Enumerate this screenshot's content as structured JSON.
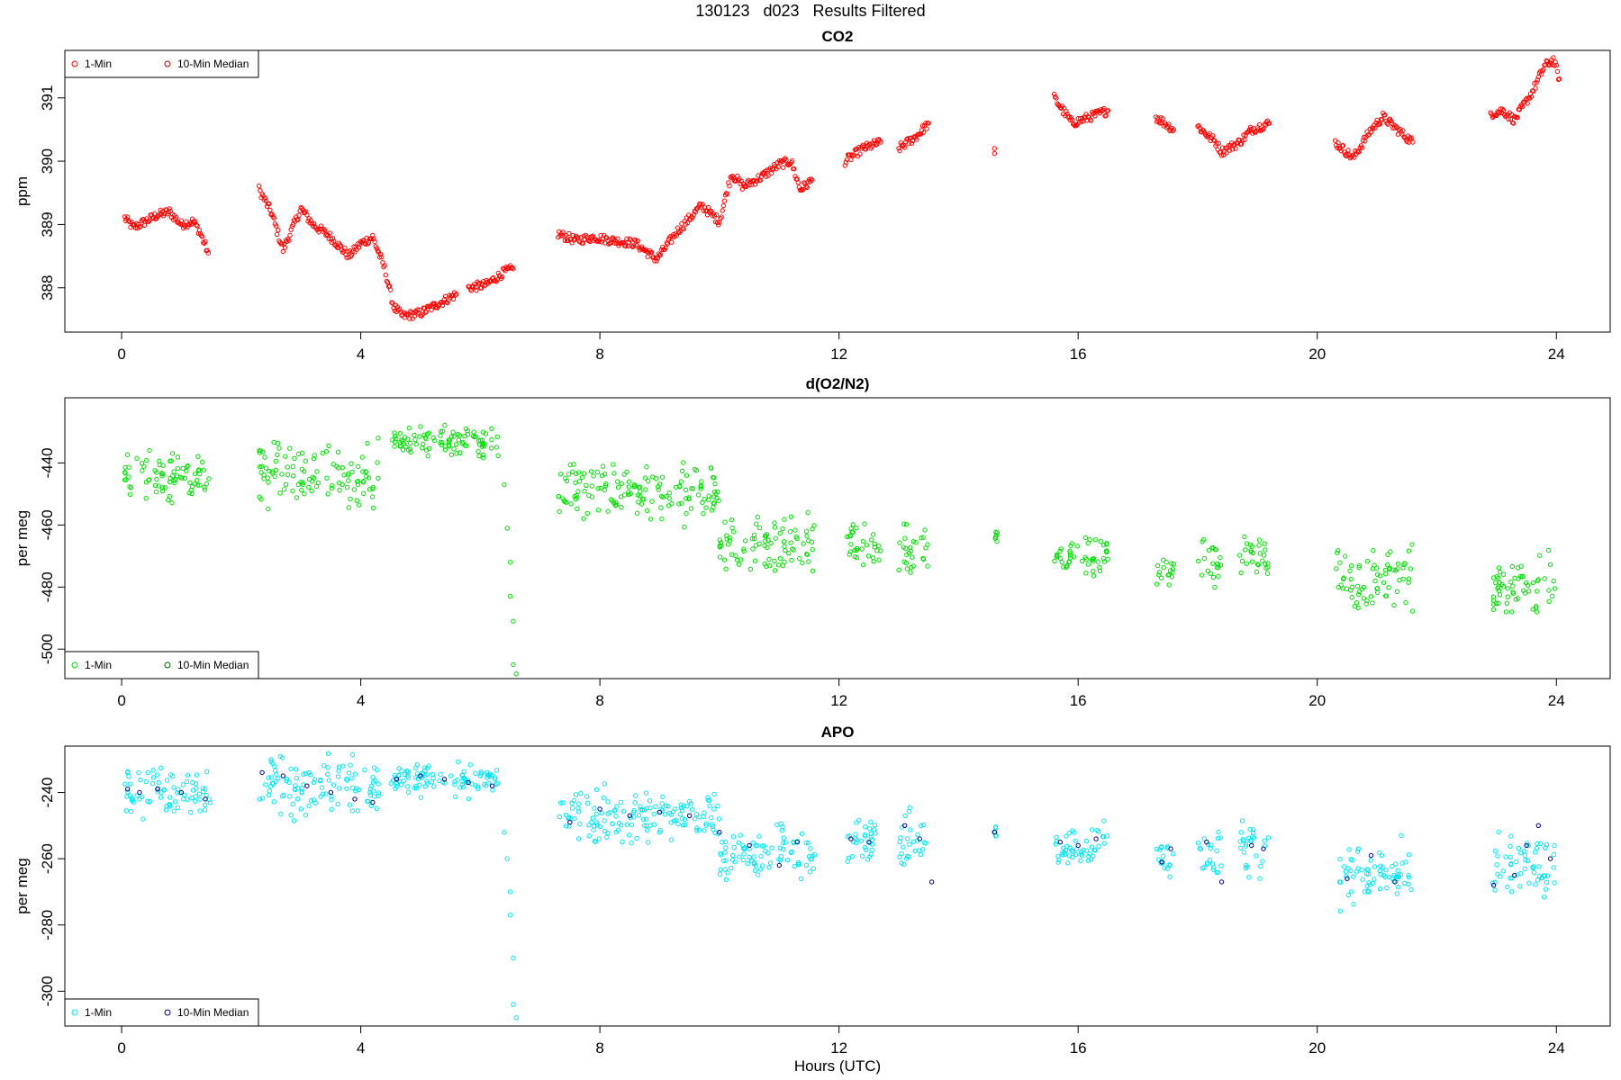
{
  "figure_title": "130123   d023   Results Filtered",
  "x_axis_label": "Hours (UTC)",
  "chart_data": [
    {
      "type": "scatter",
      "title": "CO2",
      "xlabel": "Hours (UTC)",
      "ylabel": "ppm",
      "xlim": [
        -0.95,
        24.9
      ],
      "ylim": [
        387.3,
        391.75
      ],
      "x_ticks": [
        0,
        4,
        8,
        12,
        16,
        20,
        24
      ],
      "y_ticks": [
        388,
        389,
        390,
        391
      ],
      "legend": {
        "position": "top-left",
        "entries": [
          "1-Min",
          "10-Min Median"
        ]
      },
      "colors": {
        "one_min": "#ff0000",
        "median": "#b00000"
      },
      "series": [
        {
          "name": "1-Min",
          "segments": [
            [
              [
                0.05,
                389.1
              ],
              [
                0.2,
                388.95
              ],
              [
                0.4,
                389.05
              ],
              [
                0.6,
                389.15
              ],
              [
                0.8,
                389.2
              ],
              [
                1.0,
                389.0
              ],
              [
                1.2,
                389.05
              ],
              [
                1.3,
                388.9
              ],
              [
                1.45,
                388.55
              ]
            ],
            [
              [
                2.3,
                389.55
              ],
              [
                2.5,
                389.2
              ],
              [
                2.7,
                388.6
              ],
              [
                3.0,
                389.25
              ],
              [
                3.2,
                389.0
              ],
              [
                3.5,
                388.8
              ],
              [
                3.8,
                388.5
              ],
              [
                4.0,
                388.7
              ],
              [
                4.2,
                388.8
              ],
              [
                4.4,
                388.3
              ],
              [
                4.55,
                387.7
              ],
              [
                4.7,
                387.55
              ],
              [
                5.0,
                387.6
              ],
              [
                5.3,
                387.75
              ],
              [
                5.6,
                387.9
              ]
            ],
            [
              [
                5.8,
                388.0
              ],
              [
                6.1,
                388.05
              ],
              [
                6.4,
                388.25
              ],
              [
                6.55,
                388.3
              ]
            ],
            [
              [
                7.3,
                388.85
              ],
              [
                7.6,
                388.75
              ],
              [
                7.9,
                388.8
              ],
              [
                8.2,
                388.75
              ],
              [
                8.6,
                388.7
              ],
              [
                8.95,
                388.45
              ],
              [
                9.3,
                388.9
              ],
              [
                9.7,
                389.3
              ],
              [
                10.0,
                389.05
              ],
              [
                10.2,
                389.8
              ],
              [
                10.4,
                389.6
              ],
              [
                10.7,
                389.75
              ],
              [
                11.0,
                389.95
              ],
              [
                11.2,
                390.0
              ],
              [
                11.35,
                389.55
              ],
              [
                11.55,
                389.7
              ]
            ],
            [
              [
                12.1,
                390.0
              ],
              [
                12.4,
                390.2
              ],
              [
                12.7,
                390.3
              ]
            ],
            [
              [
                13.0,
                390.2
              ],
              [
                13.3,
                390.4
              ],
              [
                13.5,
                390.6
              ]
            ],
            [
              [
                14.6,
                390.2
              ]
            ],
            [
              [
                15.6,
                391.0
              ],
              [
                15.9,
                390.6
              ],
              [
                16.2,
                390.7
              ],
              [
                16.5,
                390.8
              ]
            ],
            [
              [
                17.3,
                390.7
              ],
              [
                17.6,
                390.5
              ]
            ],
            [
              [
                18.0,
                390.55
              ],
              [
                18.3,
                390.3
              ],
              [
                18.4,
                390.15
              ],
              [
                18.7,
                390.3
              ],
              [
                18.9,
                390.5
              ],
              [
                19.2,
                390.6
              ]
            ],
            [
              [
                20.3,
                390.3
              ],
              [
                20.6,
                390.05
              ],
              [
                20.9,
                390.5
              ],
              [
                21.1,
                390.7
              ],
              [
                21.4,
                390.45
              ],
              [
                21.6,
                390.3
              ]
            ],
            [
              [
                22.9,
                390.75
              ],
              [
                23.1,
                390.8
              ],
              [
                23.3,
                390.65
              ],
              [
                23.6,
                391.1
              ],
              [
                23.8,
                391.5
              ],
              [
                23.95,
                391.6
              ],
              [
                24.05,
                391.3
              ]
            ]
          ]
        },
        {
          "name": "10-Min Median",
          "values": []
        }
      ]
    },
    {
      "type": "scatter",
      "title": "d(O2/N2)",
      "xlabel": "Hours (UTC)",
      "ylabel": "per meg",
      "xlim": [
        -0.95,
        24.9
      ],
      "ylim": [
        -509.5,
        -419
      ],
      "x_ticks": [
        0,
        4,
        8,
        12,
        16,
        20,
        24
      ],
      "y_ticks": [
        -500,
        -480,
        -460,
        -440
      ],
      "legend": {
        "position": "bottom-left",
        "entries": [
          "1-Min",
          "10-Min Median"
        ]
      },
      "colors": {
        "one_min": "#00dd00",
        "median": "#006600"
      },
      "series": [
        {
          "name": "1-Min",
          "clusters": [
            {
              "x": [
                0.05,
                1.5
              ],
              "y": [
                -455,
                -436
              ],
              "center": -444
            },
            {
              "x": [
                2.3,
                4.3
              ],
              "y": [
                -460,
                -432
              ],
              "center": -444
            },
            {
              "x": [
                4.5,
                6.3
              ],
              "y": [
                -440,
                -426
              ],
              "center": -433
            },
            {
              "x": [
                7.3,
                10.0
              ],
              "y": [
                -461,
                -437
              ],
              "center": -450
            },
            {
              "x": [
                10.0,
                11.6
              ],
              "y": [
                -481,
                -456
              ],
              "center": -467
            },
            {
              "x": [
                12.1,
                12.7
              ],
              "y": [
                -475,
                -456
              ],
              "center": -466
            },
            {
              "x": [
                13.0,
                13.5
              ],
              "y": [
                -479,
                -457
              ],
              "center": -468
            },
            {
              "x": [
                14.6,
                14.65
              ],
              "y": [
                -468,
                -462
              ],
              "center": -464
            },
            {
              "x": [
                15.6,
                16.5
              ],
              "y": [
                -478,
                -462
              ],
              "center": -470
            },
            {
              "x": [
                17.3,
                17.6
              ],
              "y": [
                -481,
                -468
              ],
              "center": -475
            },
            {
              "x": [
                18.0,
                18.4
              ],
              "y": [
                -481,
                -457
              ],
              "center": -472
            },
            {
              "x": [
                18.7,
                19.2
              ],
              "y": [
                -479,
                -459
              ],
              "center": -469
            },
            {
              "x": [
                20.3,
                21.6
              ],
              "y": [
                -490,
                -466
              ],
              "center": -477
            },
            {
              "x": [
                22.9,
                24.0
              ],
              "y": [
                -488,
                -462
              ],
              "center": -480
            }
          ],
          "outliers": [
            [
              6.4,
              -447
            ],
            [
              6.45,
              -461
            ],
            [
              6.5,
              -472
            ],
            [
              6.5,
              -483
            ],
            [
              6.55,
              -491
            ],
            [
              6.55,
              -505
            ],
            [
              6.6,
              -508
            ]
          ]
        },
        {
          "name": "10-Min Median",
          "values": []
        }
      ]
    },
    {
      "type": "scatter",
      "title": "APO",
      "xlabel": "Hours (UTC)",
      "ylabel": "per meg",
      "xlim": [
        -0.95,
        24.9
      ],
      "ylim": [
        -310.5,
        -226
      ],
      "x_ticks": [
        0,
        4,
        8,
        12,
        16,
        20,
        24
      ],
      "y_ticks": [
        -300,
        -280,
        -260,
        -240
      ],
      "legend": {
        "position": "bottom-left",
        "entries": [
          "1-Min",
          "10-Min Median"
        ]
      },
      "colors": {
        "one_min": "#00e5ee",
        "median": "#000080"
      },
      "series": [
        {
          "name": "1-Min",
          "clusters": [
            {
              "x": [
                0.05,
                1.5
              ],
              "y": [
                -252,
                -230
              ],
              "center": -240
            },
            {
              "x": [
                2.3,
                4.3
              ],
              "y": [
                -255,
                -228
              ],
              "center": -238
            },
            {
              "x": [
                4.5,
                6.3
              ],
              "y": [
                -242,
                -230
              ],
              "center": -236
            },
            {
              "x": [
                7.3,
                10.0
              ],
              "y": [
                -256,
                -237
              ],
              "center": -247
            },
            {
              "x": [
                10.0,
                11.6
              ],
              "y": [
                -272,
                -249
              ],
              "center": -259
            },
            {
              "x": [
                12.1,
                12.7
              ],
              "y": [
                -262,
                -243
              ],
              "center": -254
            },
            {
              "x": [
                13.0,
                13.5
              ],
              "y": [
                -267,
                -243
              ],
              "center": -253
            },
            {
              "x": [
                14.6,
                14.65
              ],
              "y": [
                -257,
                -250
              ],
              "center": -252
            },
            {
              "x": [
                15.6,
                16.5
              ],
              "y": [
                -263,
                -247
              ],
              "center": -256
            },
            {
              "x": [
                17.3,
                17.6
              ],
              "y": [
                -268,
                -254
              ],
              "center": -260
            },
            {
              "x": [
                18.0,
                18.4
              ],
              "y": [
                -268,
                -243
              ],
              "center": -258
            },
            {
              "x": [
                18.7,
                19.2
              ],
              "y": [
                -266,
                -245
              ],
              "center": -257
            },
            {
              "x": [
                20.3,
                21.6
              ],
              "y": [
                -277,
                -253
              ],
              "center": -265
            },
            {
              "x": [
                22.9,
                24.0
              ],
              "y": [
                -273,
                -244
              ],
              "center": -263
            }
          ],
          "outliers": [
            [
              6.4,
              -252
            ],
            [
              6.45,
              -260
            ],
            [
              6.5,
              -270
            ],
            [
              6.5,
              -277
            ],
            [
              6.55,
              -290
            ],
            [
              6.55,
              -304
            ],
            [
              6.6,
              -308
            ]
          ]
        },
        {
          "name": "10-Min Median",
          "values": [
            [
              0.1,
              -239
            ],
            [
              0.3,
              -240
            ],
            [
              0.6,
              -239
            ],
            [
              1.0,
              -240
            ],
            [
              1.4,
              -242
            ],
            [
              2.35,
              -234
            ],
            [
              2.7,
              -235
            ],
            [
              3.1,
              -238
            ],
            [
              3.5,
              -240
            ],
            [
              3.9,
              -242
            ],
            [
              4.2,
              -243
            ],
            [
              4.6,
              -236
            ],
            [
              5.0,
              -235
            ],
            [
              5.4,
              -236
            ],
            [
              5.8,
              -237
            ],
            [
              6.2,
              -238
            ],
            [
              7.5,
              -249
            ],
            [
              8.0,
              -245
            ],
            [
              8.5,
              -247
            ],
            [
              9.0,
              -246
            ],
            [
              9.5,
              -247
            ],
            [
              10.0,
              -252
            ],
            [
              10.5,
              -256
            ],
            [
              11.0,
              -262
            ],
            [
              11.3,
              -255
            ],
            [
              12.2,
              -254
            ],
            [
              12.5,
              -255
            ],
            [
              13.1,
              -250
            ],
            [
              13.35,
              -254
            ],
            [
              13.55,
              -267
            ],
            [
              14.6,
              -252
            ],
            [
              15.7,
              -255
            ],
            [
              16.0,
              -256
            ],
            [
              16.3,
              -254
            ],
            [
              17.4,
              -261
            ],
            [
              17.55,
              -257
            ],
            [
              18.15,
              -255
            ],
            [
              18.4,
              -267
            ],
            [
              18.9,
              -256
            ],
            [
              19.1,
              -257
            ],
            [
              20.5,
              -266
            ],
            [
              20.9,
              -259
            ],
            [
              21.3,
              -267
            ],
            [
              22.95,
              -268
            ],
            [
              23.3,
              -265
            ],
            [
              23.5,
              -256
            ],
            [
              23.7,
              -250
            ],
            [
              23.9,
              -260
            ]
          ]
        }
      ]
    }
  ]
}
